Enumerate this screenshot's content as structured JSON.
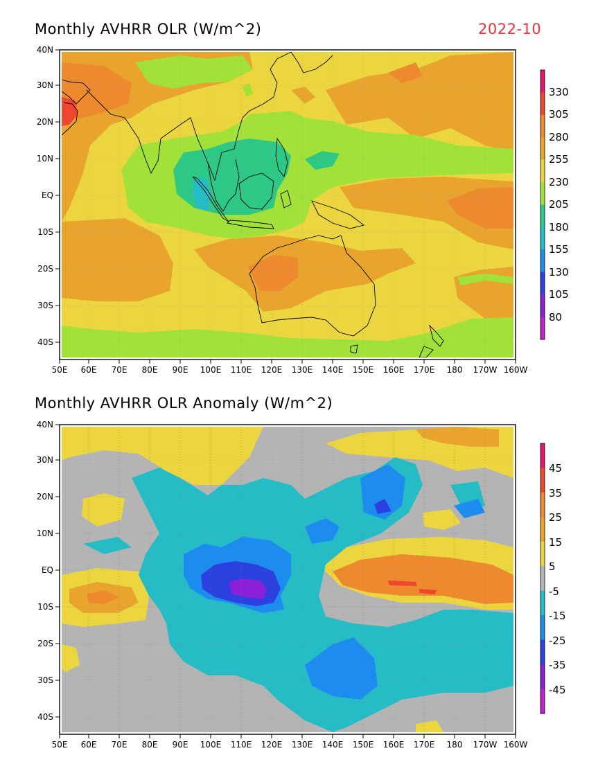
{
  "date_label": "2022-10",
  "panels": [
    {
      "title": "Monthly AVHRR OLR (W/m^2)",
      "lat_labels": [
        "40N",
        "30N",
        "20N",
        "10N",
        "EQ",
        "10S",
        "20S",
        "30S",
        "40S"
      ],
      "lon_labels": [
        "50E",
        "60E",
        "70E",
        "80E",
        "90E",
        "100E",
        "110E",
        "120E",
        "130E",
        "140E",
        "150E",
        "160E",
        "170E",
        "180",
        "170W",
        "160W"
      ],
      "colorbar_labels": [
        "330",
        "305",
        "280",
        "255",
        "230",
        "205",
        "180",
        "155",
        "130",
        "105",
        "80"
      ],
      "colorbar_colors": [
        "#e0166a",
        "#f0462e",
        "#ee8a2e",
        "#e8a42c",
        "#ecd640",
        "#a2e238",
        "#2ec886",
        "#26bcc6",
        "#1c8cf0",
        "#2c40e0",
        "#8c20d8",
        "#c020d0"
      ]
    },
    {
      "title": "Monthly AVHRR OLR Anomaly (W/m^2)",
      "lat_labels": [
        "40N",
        "30N",
        "20N",
        "10N",
        "EQ",
        "10S",
        "20S",
        "30S",
        "40S"
      ],
      "lon_labels": [
        "50E",
        "60E",
        "70E",
        "80E",
        "90E",
        "100E",
        "110E",
        "120E",
        "130E",
        "140E",
        "150E",
        "160E",
        "170E",
        "180",
        "170W",
        "160W"
      ],
      "colorbar_labels": [
        "45",
        "35",
        "25",
        "15",
        "5",
        "-5",
        "-15",
        "-25",
        "-35",
        "-45"
      ],
      "colorbar_colors": [
        "#e0166a",
        "#f0462e",
        "#ee8a2e",
        "#e8a42c",
        "#ecd640",
        "#b4b4b4",
        "#26bcc6",
        "#1c8cf0",
        "#2c40e0",
        "#8c20d8",
        "#c020d0"
      ]
    }
  ],
  "map_colors": {
    "olr_orange": "#e8a42c",
    "olr_deep_orange": "#ee8a2e",
    "olr_yellow": "#ecd640",
    "olr_green": "#a2e238",
    "olr_teal_green": "#2ec886",
    "olr_cyan": "#26bcc6",
    "olr_red": "#f0462e",
    "anom_gray": "#b4b4b4",
    "anom_yellow": "#ecd640",
    "anom_orange": "#e8a42c",
    "anom_deep_orange": "#ee8a2e",
    "anom_red": "#f0462e",
    "anom_cyan": "#26bcc6",
    "anom_blue": "#1c8cf0",
    "anom_dark_blue": "#2c40e0",
    "anom_purple": "#8c20d8"
  }
}
